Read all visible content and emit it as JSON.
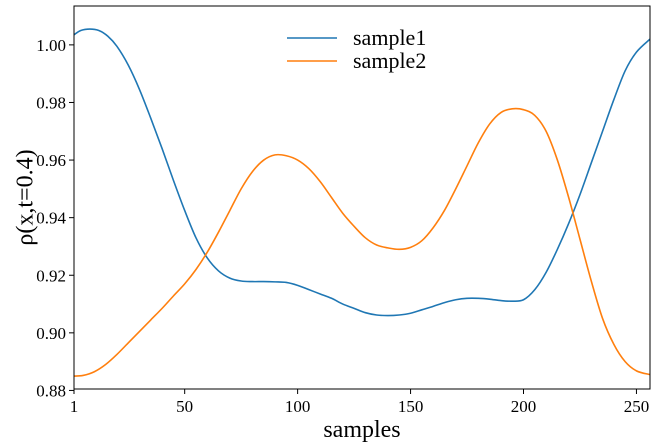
{
  "chart_data": {
    "type": "line",
    "title": "",
    "xlabel": "samples",
    "ylabel": "ρ(x,t=0.4)",
    "xlim": [
      1,
      256
    ],
    "ylim": [
      0.8805,
      1.0135
    ],
    "x_ticks": [
      1,
      50,
      100,
      150,
      200,
      250
    ],
    "y_ticks": [
      0.88,
      0.9,
      0.92,
      0.94,
      0.96,
      0.98,
      1.0
    ],
    "y_tick_labels": [
      "0.88",
      "0.90",
      "0.92",
      "0.94",
      "0.96",
      "0.98",
      "1.00"
    ],
    "grid": false,
    "legend_position": "upper center",
    "series": [
      {
        "name": "sample1",
        "color": "#1f77b4",
        "x": [
          1,
          4,
          8,
          12,
          16,
          20,
          25,
          30,
          35,
          40,
          45,
          50,
          55,
          60,
          65,
          70,
          75,
          80,
          85,
          90,
          95,
          100,
          105,
          110,
          115,
          120,
          125,
          130,
          135,
          140,
          145,
          150,
          155,
          160,
          165,
          170,
          175,
          180,
          185,
          190,
          195,
          200,
          205,
          210,
          215,
          220,
          225,
          230,
          235,
          240,
          245,
          250,
          256
        ],
        "y": [
          1.0035,
          1.005,
          1.0055,
          1.005,
          1.003,
          0.9995,
          0.993,
          0.9845,
          0.9745,
          0.964,
          0.953,
          0.9425,
          0.933,
          0.926,
          0.9215,
          0.919,
          0.918,
          0.9178,
          0.9178,
          0.9177,
          0.9175,
          0.9165,
          0.915,
          0.9135,
          0.912,
          0.91,
          0.9085,
          0.907,
          0.9062,
          0.906,
          0.9062,
          0.9068,
          0.908,
          0.9092,
          0.9105,
          0.9115,
          0.912,
          0.912,
          0.9117,
          0.9112,
          0.911,
          0.9115,
          0.915,
          0.921,
          0.929,
          0.938,
          0.948,
          0.959,
          0.97,
          0.981,
          0.991,
          0.9975,
          1.002
        ]
      },
      {
        "name": "sample2",
        "color": "#ff7f0e",
        "x": [
          1,
          5,
          10,
          15,
          20,
          25,
          30,
          35,
          40,
          45,
          50,
          55,
          60,
          65,
          70,
          75,
          80,
          85,
          90,
          95,
          100,
          105,
          110,
          115,
          120,
          125,
          130,
          135,
          140,
          145,
          150,
          155,
          160,
          165,
          170,
          175,
          180,
          185,
          190,
          195,
          200,
          205,
          210,
          215,
          220,
          225,
          230,
          235,
          240,
          245,
          250,
          256
        ],
        "y": [
          0.885,
          0.8852,
          0.8865,
          0.889,
          0.8925,
          0.8965,
          0.9005,
          0.9045,
          0.9085,
          0.9128,
          0.917,
          0.922,
          0.928,
          0.935,
          0.9425,
          0.95,
          0.956,
          0.96,
          0.9618,
          0.9615,
          0.96,
          0.957,
          0.9525,
          0.947,
          0.9415,
          0.937,
          0.933,
          0.9305,
          0.9295,
          0.929,
          0.9297,
          0.932,
          0.9365,
          0.9425,
          0.95,
          0.958,
          0.966,
          0.9725,
          0.9765,
          0.9778,
          0.9775,
          0.9755,
          0.97,
          0.96,
          0.947,
          0.9325,
          0.918,
          0.905,
          0.896,
          0.89,
          0.8868,
          0.8855
        ]
      }
    ]
  }
}
